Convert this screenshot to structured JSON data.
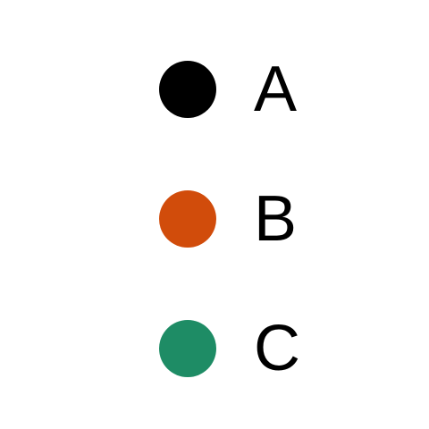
{
  "legend": {
    "items": [
      {
        "label": "A",
        "color": "#000000"
      },
      {
        "label": "B",
        "color": "#d14c0b"
      },
      {
        "label": "C",
        "color": "#1e8c65"
      }
    ]
  }
}
